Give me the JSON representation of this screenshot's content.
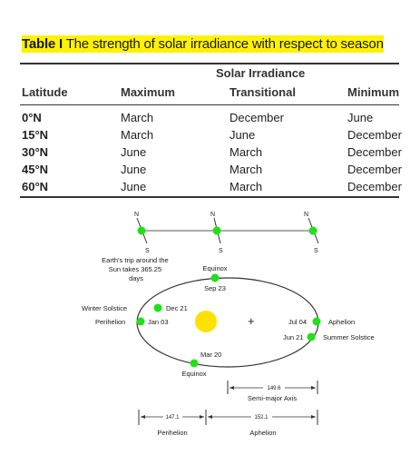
{
  "caption": {
    "label": "Table I",
    "text": "The strength of solar irradiance with respect to season"
  },
  "table": {
    "group_header": "Solar Irradiance",
    "columns": [
      "Latitude",
      "Maximum",
      "Transitional",
      "Minimum"
    ],
    "rows": [
      [
        "0°N",
        "March",
        "December",
        "June"
      ],
      [
        "15°N",
        "March",
        "June",
        "December"
      ],
      [
        "30°N",
        "June",
        "March",
        "December"
      ],
      [
        "45°N",
        "June",
        "March",
        "December"
      ],
      [
        "60°N",
        "June",
        "March",
        "December"
      ]
    ]
  },
  "diagram": {
    "axis_north": "N",
    "axis_south": "S",
    "trip_note": "Earth's trip around the Sun takes 365.25 days",
    "equinox_top": "Equinox",
    "date_sep23": "Sep 23",
    "winter_solstice": "Winter Solstice",
    "date_dec21": "Dec 21",
    "perihelion": "Perihelion",
    "date_jan03": "Jan 03",
    "date_jul04": "Jul 04",
    "aphelion": "Aphelion",
    "date_jun21": "Jun 21",
    "summer_solstice": "Summer Solstice",
    "date_mar20": "Mar 20",
    "equinox_bottom": "Equinox",
    "semi_major_value": "149.6",
    "semi_major_label": "Semi-major Axis",
    "perihelion_dist": "147.1",
    "aphelion_dist": "152.1",
    "perihelion_label": "Perihelion",
    "aphelion_label": "Aphelion",
    "colors": {
      "earth": "#22e016",
      "sun": "#ffe000",
      "highlight": "#fff200"
    }
  }
}
